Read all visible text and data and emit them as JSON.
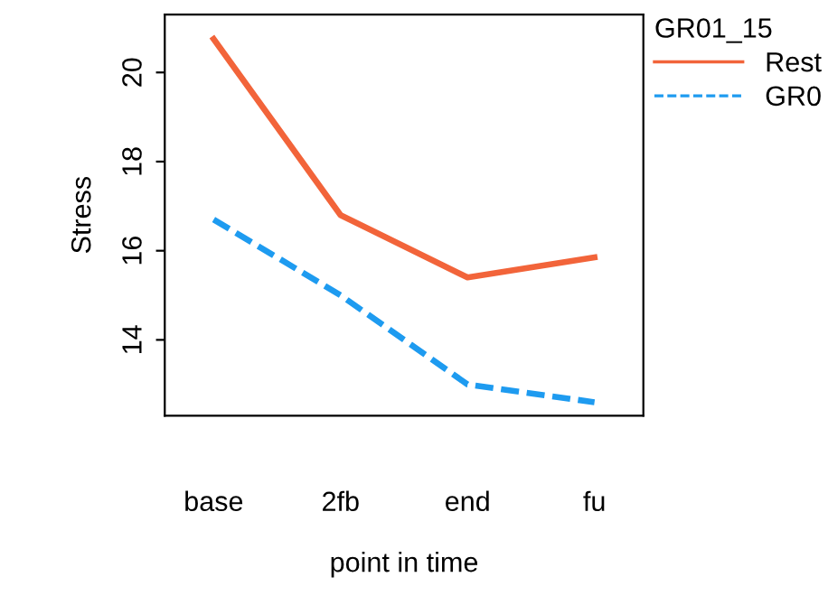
{
  "chart_data": {
    "type": "line",
    "xlabel": "point in time",
    "ylabel": "Stress",
    "legend_title": "GR01_15",
    "legend": "top right",
    "grid": false,
    "categories": [
      "base",
      "2fb",
      "end",
      "fu"
    ],
    "ylim": [
      12.3,
      21.3
    ],
    "yticks": [
      14,
      16,
      18,
      20
    ],
    "series": [
      {
        "name": "Rest",
        "color": "#f2643a",
        "line_style": "solid",
        "values": [
          20.75,
          16.8,
          15.4,
          15.85
        ]
      },
      {
        "name": "GR0",
        "color": "#1e9bf0",
        "line_style": "dashed",
        "values": [
          16.7,
          15.0,
          13.0,
          12.6
        ]
      }
    ]
  }
}
